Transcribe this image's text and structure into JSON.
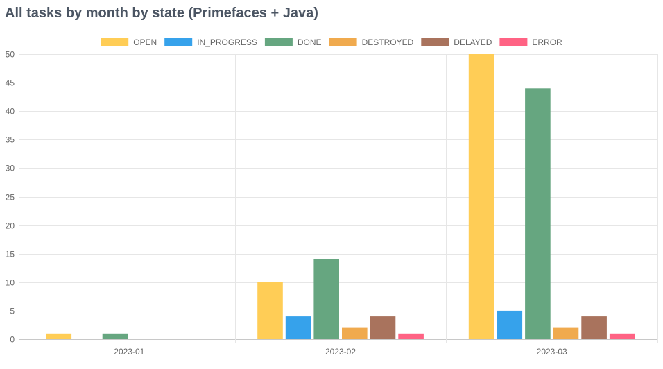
{
  "page": {
    "title": "All tasks by month by state (Primefaces + Java)"
  },
  "chart_data": {
    "type": "bar",
    "title": "",
    "xlabel": "",
    "ylabel": "",
    "categories": [
      "2023-01",
      "2023-02",
      "2023-03"
    ],
    "ylim": [
      0,
      50
    ],
    "yticks": [
      0,
      5,
      10,
      15,
      20,
      25,
      30,
      35,
      40,
      45,
      50
    ],
    "grid": true,
    "legend_position": "top",
    "series": [
      {
        "name": "OPEN",
        "color": "#ffcd56",
        "values": [
          1,
          10,
          50
        ]
      },
      {
        "name": "IN_PROGRESS",
        "color": "#36a2eb",
        "values": [
          0,
          4,
          5
        ]
      },
      {
        "name": "DONE",
        "color": "#66a680",
        "values": [
          1,
          14,
          44
        ]
      },
      {
        "name": "DESTROYED",
        "color": "#f0aa4e",
        "values": [
          0,
          2,
          2
        ]
      },
      {
        "name": "DELAYED",
        "color": "#a9735d",
        "values": [
          0,
          4,
          4
        ]
      },
      {
        "name": "ERROR",
        "color": "#ff6384",
        "values": [
          0,
          1,
          1
        ]
      }
    ]
  }
}
